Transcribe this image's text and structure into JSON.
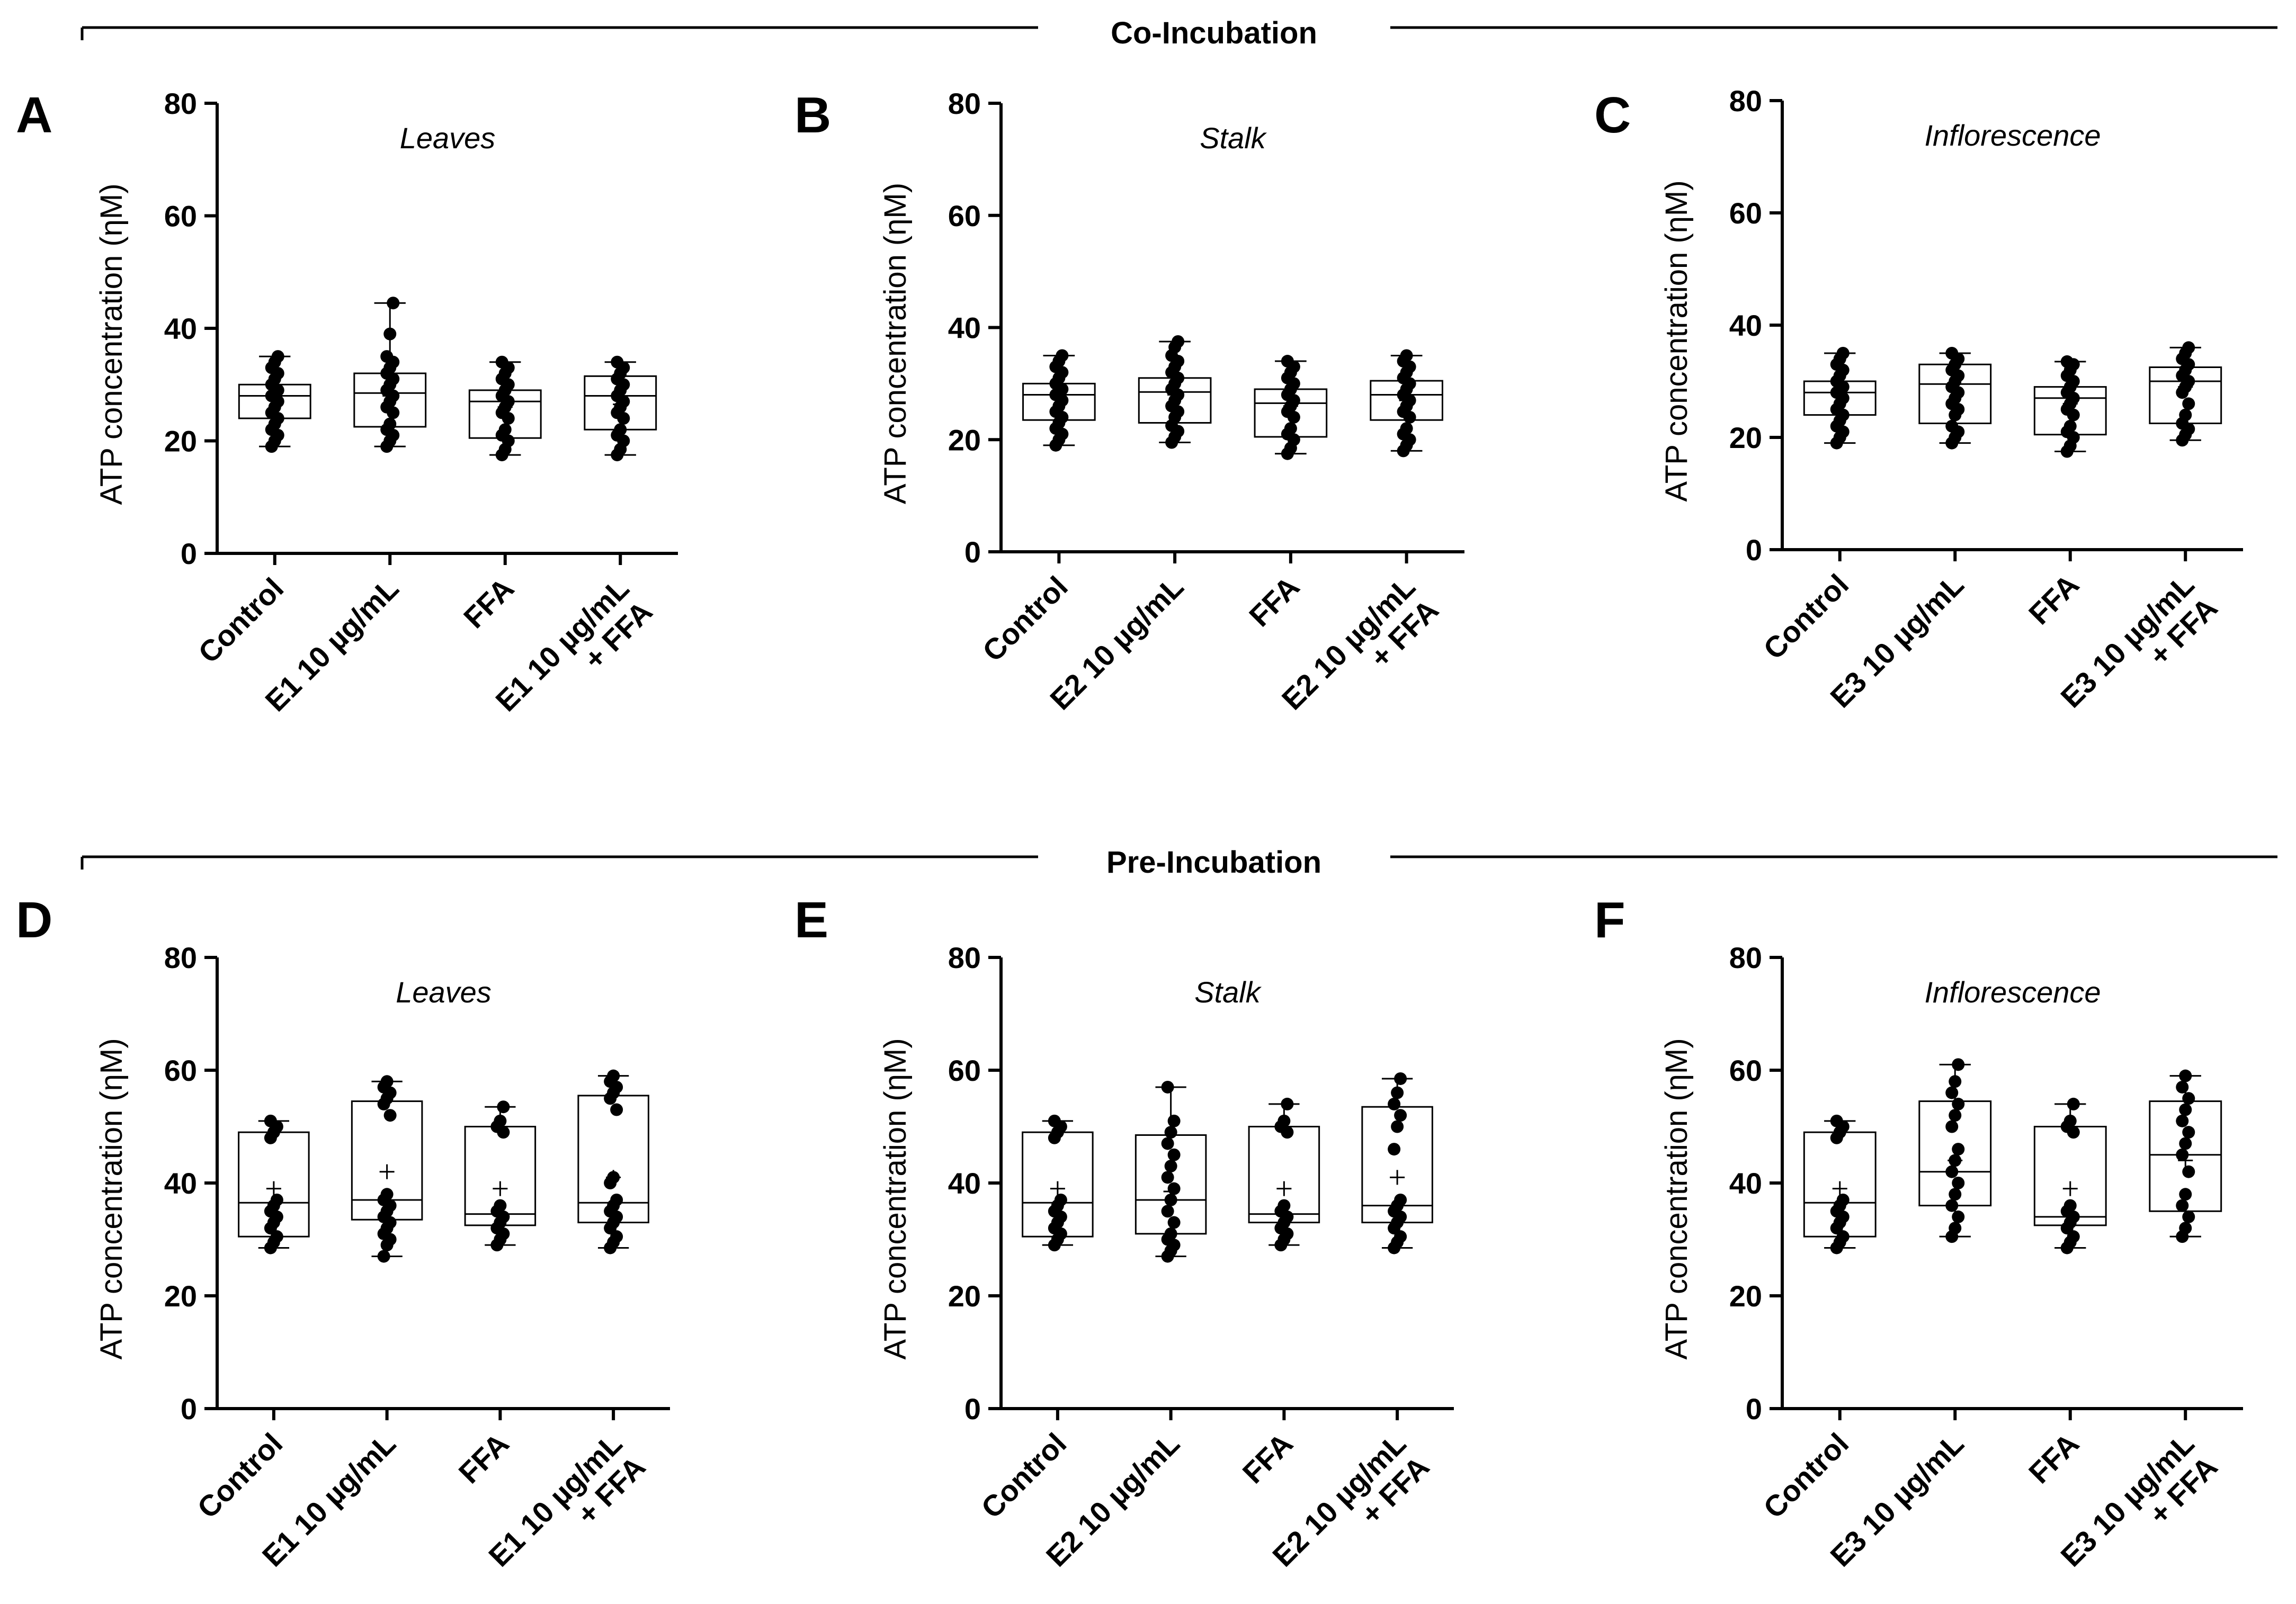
{
  "sections": [
    {
      "title": "Co-Incubation"
    },
    {
      "title": "Pre-Incubation"
    }
  ],
  "chart_data": [
    {
      "type": "box",
      "panel": "A",
      "title": "Leaves",
      "ylabel": "ATP concentration (ηM)",
      "ylim": [
        0,
        80
      ],
      "yticks": [
        0,
        20,
        40,
        60,
        80
      ],
      "categories": [
        [
          "Control"
        ],
        [
          "E1 10 µg/mL"
        ],
        [
          "FFA"
        ],
        [
          "E1 10 µg/mL",
          "+ FFA"
        ]
      ],
      "boxes": [
        {
          "min": 19,
          "q1": 24,
          "median": 28,
          "q3": 30,
          "max": 35,
          "mean": 27.5,
          "points": [
            19,
            20,
            21,
            22,
            23,
            24,
            25,
            26,
            27,
            28,
            28,
            29,
            30,
            31,
            32,
            33,
            34,
            35
          ]
        },
        {
          "min": 19,
          "q1": 22.5,
          "median": 28.5,
          "q3": 32,
          "max": 44.5,
          "mean": 28,
          "points": [
            19,
            20,
            21,
            22,
            23,
            25,
            26,
            27,
            28,
            29,
            30,
            31,
            32,
            33,
            34,
            35,
            39,
            44.5
          ]
        },
        {
          "min": 17.5,
          "q1": 20.5,
          "median": 27,
          "q3": 29,
          "max": 34,
          "mean": 26,
          "points": [
            17.5,
            18.5,
            20,
            21,
            22,
            24,
            25,
            26,
            27,
            28,
            29,
            30,
            31,
            32,
            33,
            34
          ]
        },
        {
          "min": 17.5,
          "q1": 22,
          "median": 28,
          "q3": 31.5,
          "max": 34,
          "mean": 26.5,
          "points": [
            17.5,
            18.5,
            20,
            21,
            22,
            24,
            25,
            26,
            27,
            28,
            29,
            30,
            31,
            32,
            33,
            34
          ]
        }
      ]
    },
    {
      "type": "box",
      "panel": "B",
      "title": "Stalk",
      "ylabel": "ATP concentration (ηM)",
      "ylim": [
        0,
        80
      ],
      "yticks": [
        0,
        20,
        40,
        60,
        80
      ],
      "categories": [
        [
          "Control"
        ],
        [
          "E2 10 µg/mL"
        ],
        [
          "FFA"
        ],
        [
          "E2 10 µg/mL",
          "+ FFA"
        ]
      ],
      "boxes": [
        {
          "min": 19,
          "q1": 23.5,
          "median": 28,
          "q3": 30,
          "max": 35,
          "mean": 27.5,
          "points": [
            19,
            20,
            21,
            22,
            23,
            24,
            25,
            26,
            27,
            28,
            28,
            29,
            30,
            31,
            32,
            33,
            34,
            35
          ]
        },
        {
          "min": 19.5,
          "q1": 23,
          "median": 28.5,
          "q3": 31,
          "max": 37.5,
          "mean": 28,
          "points": [
            19.5,
            20.5,
            21.5,
            22.5,
            24,
            25,
            26,
            27,
            28,
            29,
            30,
            31,
            32,
            33,
            34,
            35,
            36.5,
            37.5
          ]
        },
        {
          "min": 17.5,
          "q1": 20.5,
          "median": 26.5,
          "q3": 29,
          "max": 34,
          "mean": 26,
          "points": [
            17.5,
            18.5,
            20,
            21,
            22,
            24,
            25,
            26,
            27,
            28,
            29,
            30,
            31,
            32,
            33,
            34
          ]
        },
        {
          "min": 18,
          "q1": 23.5,
          "median": 28,
          "q3": 30.5,
          "max": 35,
          "mean": 27,
          "points": [
            18,
            19,
            20,
            21,
            22,
            24,
            25,
            26,
            27,
            28,
            29,
            30,
            31,
            32,
            33,
            34,
            35
          ]
        }
      ]
    },
    {
      "type": "box",
      "panel": "C",
      "title": "Inflorescence",
      "ylabel": "ATP concentration (ηM)",
      "ylim": [
        0,
        80
      ],
      "yticks": [
        0,
        20,
        40,
        60,
        80
      ],
      "categories": [
        [
          "Control"
        ],
        [
          "E3 10 µg/mL"
        ],
        [
          "FFA"
        ],
        [
          "E3 10 µg/mL",
          "+ FFA"
        ]
      ],
      "boxes": [
        {
          "min": 19,
          "q1": 24,
          "median": 28,
          "q3": 30,
          "max": 35,
          "mean": 27.5,
          "points": [
            19,
            20,
            21,
            22,
            23,
            24,
            25,
            26,
            27,
            28,
            28,
            29,
            30,
            31,
            32,
            33,
            34,
            35
          ]
        },
        {
          "min": 19,
          "q1": 22.5,
          "median": 29.5,
          "q3": 33,
          "max": 35,
          "mean": 28.5,
          "points": [
            19,
            20,
            21,
            22,
            24,
            25,
            26,
            27,
            28,
            29,
            30,
            31,
            32,
            33,
            34,
            35
          ]
        },
        {
          "min": 17.5,
          "q1": 20.5,
          "median": 27,
          "q3": 29,
          "max": 33.5,
          "mean": 26,
          "points": [
            17.5,
            18.5,
            20,
            21,
            22,
            24,
            25,
            26,
            27,
            28,
            29,
            30,
            31,
            32,
            33,
            33.5
          ]
        },
        {
          "min": 19.5,
          "q1": 22.5,
          "median": 30,
          "q3": 32.5,
          "max": 36,
          "mean": 29,
          "points": [
            19.5,
            20.5,
            21.5,
            22.5,
            24,
            26,
            28,
            29,
            30,
            31,
            32,
            33,
            34,
            35,
            36
          ]
        }
      ]
    },
    {
      "type": "box",
      "panel": "D",
      "title": "Leaves",
      "ylabel": "ATP concentration (ηM)",
      "ylim": [
        0,
        80
      ],
      "yticks": [
        0,
        20,
        40,
        60,
        80
      ],
      "categories": [
        [
          "Control"
        ],
        [
          "E1 10 µg/mL"
        ],
        [
          "FFA"
        ],
        [
          "E1 10 µg/mL",
          "+ FFA"
        ]
      ],
      "boxes": [
        {
          "min": 28.5,
          "q1": 30.5,
          "median": 36.5,
          "q3": 49,
          "max": 51,
          "mean": 39,
          "points": [
            28.5,
            29.5,
            30.5,
            32,
            33,
            34,
            35,
            36,
            37,
            48,
            49,
            50,
            51
          ]
        },
        {
          "min": 27,
          "q1": 33.5,
          "median": 37,
          "q3": 54.5,
          "max": 58,
          "mean": 42,
          "points": [
            27,
            29,
            30,
            31,
            32,
            33,
            34,
            35,
            36,
            37,
            38,
            52,
            54,
            55,
            56,
            57,
            58
          ]
        },
        {
          "min": 29,
          "q1": 32.5,
          "median": 34.5,
          "q3": 50,
          "max": 53.5,
          "mean": 39,
          "points": [
            29,
            30,
            31,
            32,
            33,
            34,
            35,
            36,
            49,
            50,
            51,
            53.5
          ]
        },
        {
          "min": 28.5,
          "q1": 33,
          "median": 36.5,
          "q3": 55.5,
          "max": 59,
          "mean": 41,
          "points": [
            28.5,
            29.5,
            30.5,
            32,
            33,
            34,
            35,
            36,
            37,
            40,
            41,
            53,
            55,
            56,
            57,
            58,
            59
          ]
        }
      ]
    },
    {
      "type": "box",
      "panel": "E",
      "title": "Stalk",
      "ylabel": "ATP concentration (ηM)",
      "ylim": [
        0,
        80
      ],
      "yticks": [
        0,
        20,
        40,
        60,
        80
      ],
      "categories": [
        [
          "Control"
        ],
        [
          "E2 10 µg/mL"
        ],
        [
          "FFA"
        ],
        [
          "E2 10 µg/mL",
          "+ FFA"
        ]
      ],
      "boxes": [
        {
          "min": 29,
          "q1": 30.5,
          "median": 36.5,
          "q3": 49,
          "max": 51,
          "mean": 39,
          "points": [
            29,
            30,
            31,
            32,
            33,
            34,
            35,
            36,
            37,
            48,
            49,
            50,
            51
          ]
        },
        {
          "min": 27,
          "q1": 31,
          "median": 37,
          "q3": 48.5,
          "max": 57,
          "mean": 38.5,
          "points": [
            27,
            28,
            29,
            30,
            31,
            33,
            35,
            37,
            39,
            41,
            43,
            45,
            47,
            49,
            51,
            57
          ]
        },
        {
          "min": 29,
          "q1": 33,
          "median": 34.5,
          "q3": 50,
          "max": 54,
          "mean": 39,
          "points": [
            29,
            30,
            31,
            32,
            33,
            34,
            35,
            36,
            49,
            50,
            51,
            54
          ]
        },
        {
          "min": 28.5,
          "q1": 33,
          "median": 36,
          "q3": 53.5,
          "max": 58.5,
          "mean": 41,
          "points": [
            28.5,
            29.5,
            30.5,
            32,
            33,
            34,
            35,
            36,
            37,
            46,
            50,
            52,
            54,
            56,
            58.5
          ]
        }
      ]
    },
    {
      "type": "box",
      "panel": "F",
      "title": "Inflorescence",
      "ylabel": "ATP concentration (ηM)",
      "ylim": [
        0,
        80
      ],
      "yticks": [
        0,
        20,
        40,
        60,
        80
      ],
      "categories": [
        [
          "Control"
        ],
        [
          "E3 10 µg/mL"
        ],
        [
          "FFA"
        ],
        [
          "E3 10 µg/mL",
          "+ FFA"
        ]
      ],
      "boxes": [
        {
          "min": 28.5,
          "q1": 30.5,
          "median": 36.5,
          "q3": 49,
          "max": 51,
          "mean": 39,
          "points": [
            28.5,
            29.5,
            30.5,
            32,
            33,
            34,
            35,
            36,
            37,
            48,
            49,
            50,
            51
          ]
        },
        {
          "min": 30.5,
          "q1": 36,
          "median": 42,
          "q3": 54.5,
          "max": 61,
          "mean": 44,
          "points": [
            30.5,
            32,
            34,
            36,
            38,
            40,
            42,
            44,
            46,
            50,
            52,
            54,
            56,
            58,
            61
          ]
        },
        {
          "min": 28.5,
          "q1": 32.5,
          "median": 34,
          "q3": 50,
          "max": 54,
          "mean": 39,
          "points": [
            28.5,
            29.5,
            30.5,
            32,
            33,
            34,
            35,
            36,
            49,
            50,
            51,
            54
          ]
        },
        {
          "min": 30.5,
          "q1": 35,
          "median": 45,
          "q3": 54.5,
          "max": 59,
          "mean": 44,
          "points": [
            30.5,
            32,
            34,
            36,
            38,
            42,
            45,
            47,
            49,
            51,
            53,
            55,
            57,
            59
          ]
        }
      ]
    }
  ]
}
